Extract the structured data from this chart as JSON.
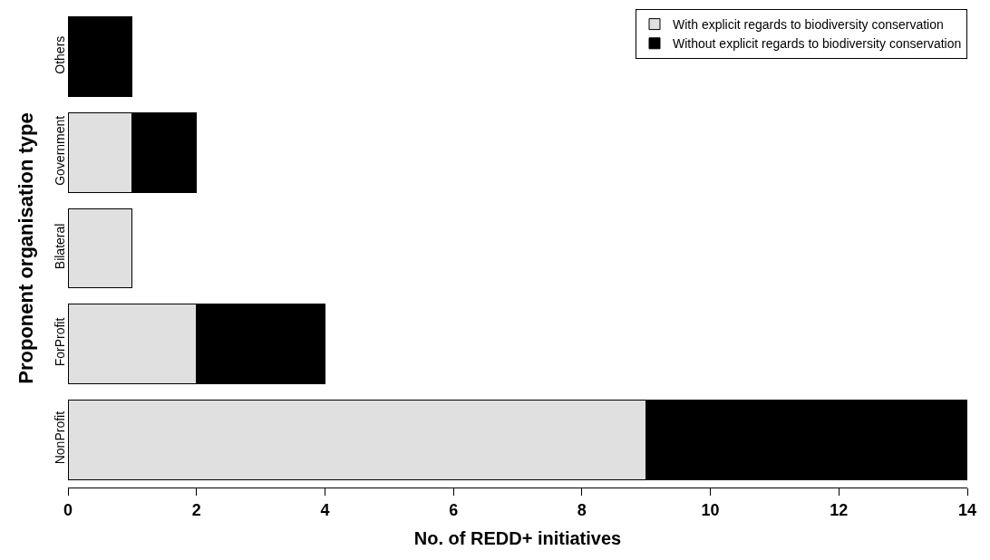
{
  "chart_data": {
    "type": "bar",
    "orientation": "horizontal",
    "stacked": true,
    "xlabel": "No. of REDD+ initiatives",
    "ylabel": "Proponent organisation type",
    "categories": [
      "Others",
      "Government",
      "Bilateral",
      "ForProfit",
      "NonProfit"
    ],
    "series": [
      {
        "name": "With explicit regards to biodiversity conservation",
        "color": "#e0e0e0",
        "values": [
          0,
          1,
          1,
          2,
          9
        ]
      },
      {
        "name": "Without explicit regards to biodiversity conservation",
        "color": "#000000",
        "values": [
          1,
          1,
          0,
          2,
          5
        ]
      }
    ],
    "xlim": [
      0,
      14
    ],
    "xticks": [
      0,
      2,
      4,
      6,
      8,
      10,
      12,
      14
    ],
    "legend": "top right"
  }
}
